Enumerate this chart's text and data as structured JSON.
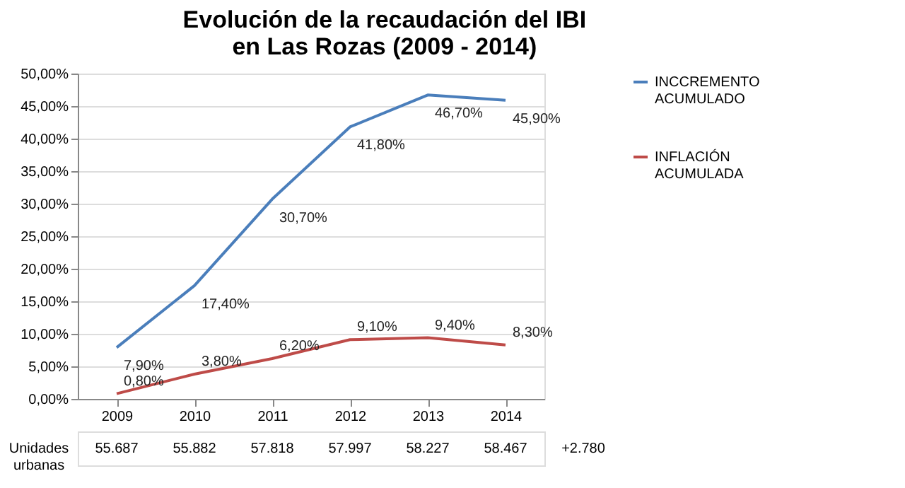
{
  "chart_data": {
    "type": "line",
    "title": "Evolución de la recaudación del IBI\nen Las Rozas (2009 - 2014)",
    "categories": [
      "2009",
      "2010",
      "2011",
      "2012",
      "2013",
      "2014"
    ],
    "series": [
      {
        "name": "INCCREMENTO ACUMULADO",
        "color": "#4a7ebb",
        "values": [
          7.9,
          17.4,
          30.7,
          41.8,
          46.7,
          45.9
        ],
        "value_labels": [
          "7,90%",
          "17,40%",
          "30,70%",
          "41,80%",
          "46,70%",
          "45,90%"
        ]
      },
      {
        "name": "INFLACIÓN ACUMULADA",
        "color": "#be4b48",
        "values": [
          0.8,
          3.8,
          6.2,
          9.1,
          9.4,
          8.3
        ],
        "value_labels": [
          "0,80%",
          "3,80%",
          "6,20%",
          "9,10%",
          "9,40%",
          "8,30%"
        ]
      }
    ],
    "ylim": [
      0,
      50
    ],
    "yticks": [
      {
        "value": 0,
        "label": "0,00%"
      },
      {
        "value": 5,
        "label": "5,00%"
      },
      {
        "value": 10,
        "label": "10,00%"
      },
      {
        "value": 15,
        "label": "15,00%"
      },
      {
        "value": 20,
        "label": "20,00%"
      },
      {
        "value": 25,
        "label": "25,00%"
      },
      {
        "value": 30,
        "label": "30,00%"
      },
      {
        "value": 35,
        "label": "35,00%"
      },
      {
        "value": 40,
        "label": "40,00%"
      },
      {
        "value": 45,
        "label": "45,00%"
      },
      {
        "value": 50,
        "label": "50,00%"
      }
    ],
    "grid": "y",
    "legend": "right",
    "marker": "none",
    "line_style": "solid",
    "annotations": [
      "Unidades urbanas",
      "55.687",
      "55.882",
      "57.818",
      "57.997",
      "58.227",
      "58.467",
      "+2.780"
    ]
  }
}
